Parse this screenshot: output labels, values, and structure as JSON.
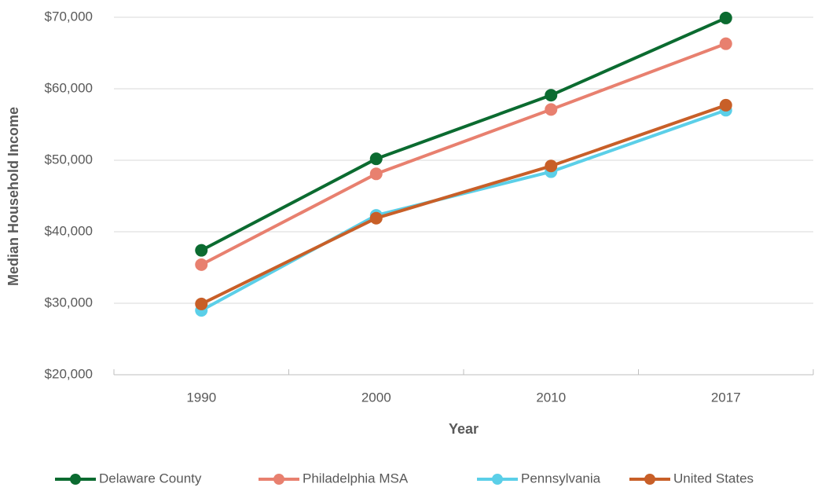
{
  "chart_data": {
    "type": "line",
    "x_label": "Year",
    "y_label": "Median Household Income",
    "categories": [
      "1990",
      "2000",
      "2010",
      "2017"
    ],
    "series": [
      {
        "name": "Delaware County",
        "color": "#0b6b30",
        "values": [
          37400,
          50200,
          59100,
          69900
        ]
      },
      {
        "name": "Philadelphia MSA",
        "color": "#e8806f",
        "values": [
          35400,
          48100,
          57100,
          66300
        ]
      },
      {
        "name": "Pennsylvania",
        "color": "#5bcfe8",
        "values": [
          29000,
          42300,
          48400,
          57000
        ]
      },
      {
        "name": "United States",
        "color": "#c85f28",
        "values": [
          29900,
          41900,
          49200,
          57700
        ]
      }
    ],
    "ylim": [
      20000,
      70000
    ],
    "yticks": [
      {
        "value": 20000,
        "label": "$20,000"
      },
      {
        "value": 30000,
        "label": "$30,000"
      },
      {
        "value": 40000,
        "label": "$40,000"
      },
      {
        "value": 50000,
        "label": "$50,000"
      },
      {
        "value": 60000,
        "label": "$60,000"
      },
      {
        "value": 70000,
        "label": "$70,000"
      }
    ],
    "grid": true,
    "legend": "bottom"
  }
}
